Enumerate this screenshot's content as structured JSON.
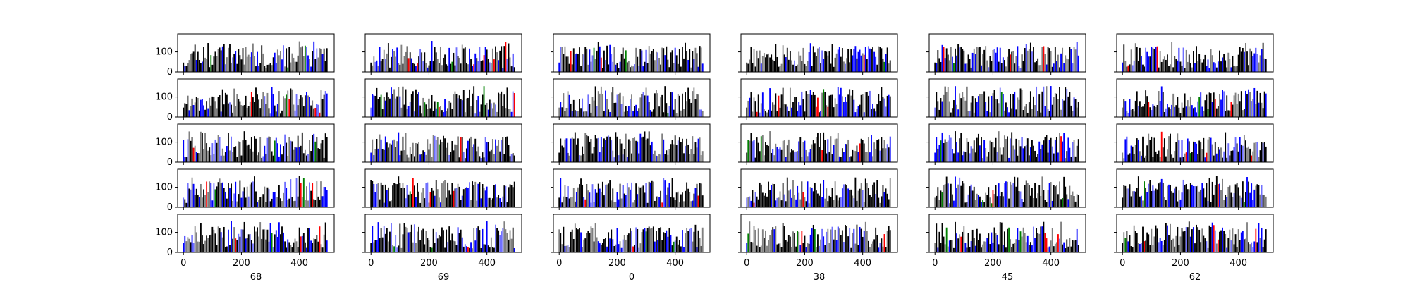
{
  "chart_data": {
    "type": "bar",
    "layout": "grid of 5 rows x 6 columns of bar-chart panels, shared axes",
    "x_range": [
      -20,
      520
    ],
    "y_range": [
      0,
      190
    ],
    "x_ticks": [
      0,
      200,
      400
    ],
    "y_ticks": [
      0,
      100
    ],
    "bars_per_panel": 100,
    "bar_step": 5,
    "column_labels": [
      "68",
      "69",
      "0",
      "38",
      "45",
      "62"
    ],
    "bar_colors": [
      "#000000",
      "#808080",
      "#0000ff",
      "#7070ff",
      "#ff0000",
      "#008000"
    ],
    "value_range_note": "per-bar values approx 0-150, tallest bars ~150",
    "panels": [
      {
        "row": 0,
        "col": 0,
        "column_label": "68",
        "seed": 11
      },
      {
        "row": 0,
        "col": 1,
        "column_label": "69",
        "seed": 12
      },
      {
        "row": 0,
        "col": 2,
        "column_label": "0",
        "seed": 13
      },
      {
        "row": 0,
        "col": 3,
        "column_label": "38",
        "seed": 14
      },
      {
        "row": 0,
        "col": 4,
        "column_label": "45",
        "seed": 15
      },
      {
        "row": 0,
        "col": 5,
        "column_label": "62",
        "seed": 16
      },
      {
        "row": 1,
        "col": 0,
        "column_label": "68",
        "seed": 21
      },
      {
        "row": 1,
        "col": 1,
        "column_label": "69",
        "seed": 22
      },
      {
        "row": 1,
        "col": 2,
        "column_label": "0",
        "seed": 23
      },
      {
        "row": 1,
        "col": 3,
        "column_label": "38",
        "seed": 24
      },
      {
        "row": 1,
        "col": 4,
        "column_label": "45",
        "seed": 25
      },
      {
        "row": 1,
        "col": 5,
        "column_label": "62",
        "seed": 26
      },
      {
        "row": 2,
        "col": 0,
        "column_label": "68",
        "seed": 31
      },
      {
        "row": 2,
        "col": 1,
        "column_label": "69",
        "seed": 32
      },
      {
        "row": 2,
        "col": 2,
        "column_label": "0",
        "seed": 33
      },
      {
        "row": 2,
        "col": 3,
        "column_label": "38",
        "seed": 34
      },
      {
        "row": 2,
        "col": 4,
        "column_label": "45",
        "seed": 35
      },
      {
        "row": 2,
        "col": 5,
        "column_label": "62",
        "seed": 36
      },
      {
        "row": 3,
        "col": 0,
        "column_label": "68",
        "seed": 41
      },
      {
        "row": 3,
        "col": 1,
        "column_label": "69",
        "seed": 42
      },
      {
        "row": 3,
        "col": 2,
        "column_label": "0",
        "seed": 43
      },
      {
        "row": 3,
        "col": 3,
        "column_label": "38",
        "seed": 44
      },
      {
        "row": 3,
        "col": 4,
        "column_label": "45",
        "seed": 45
      },
      {
        "row": 3,
        "col": 5,
        "column_label": "62",
        "seed": 46
      },
      {
        "row": 4,
        "col": 0,
        "column_label": "68",
        "seed": 51
      },
      {
        "row": 4,
        "col": 1,
        "column_label": "69",
        "seed": 52
      },
      {
        "row": 4,
        "col": 2,
        "column_label": "0",
        "seed": 53
      },
      {
        "row": 4,
        "col": 3,
        "column_label": "38",
        "seed": 54
      },
      {
        "row": 4,
        "col": 4,
        "column_label": "45",
        "seed": 55
      },
      {
        "row": 4,
        "col": 5,
        "column_label": "62",
        "seed": 56
      }
    ]
  }
}
